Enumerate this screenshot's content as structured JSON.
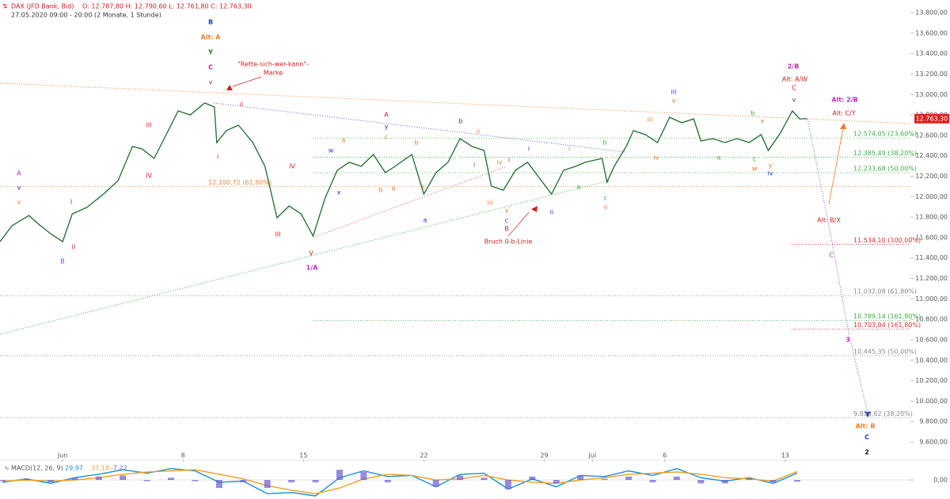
{
  "header": {
    "instrument": "DAX (JFD Bank, Bid)",
    "ohlc": "O: 12.787,80  H: 12.790,60  L: 12.761,80  C: 12.763,30",
    "period": "27.05.2020 09:00 - 20:00  (2 Monate, 1 Stunde)"
  },
  "chart_data": [
    {
      "type": "line",
      "xlim": [
        -2.6,
        35.2
      ],
      "ylim": [
        9430,
        13924
      ],
      "xticks": [
        {
          "value": 0,
          "label": "Jun"
        },
        {
          "value": 5,
          "label": "8"
        },
        {
          "value": 10,
          "label": "15"
        },
        {
          "value": 15,
          "label": "22"
        },
        {
          "value": 20,
          "label": "29"
        },
        {
          "value": 22,
          "label": "Jul"
        },
        {
          "value": 25,
          "label": "6"
        },
        {
          "value": 30,
          "label": "13"
        }
      ],
      "yticks": [
        {
          "value": 9600,
          "label": "9.600,00"
        },
        {
          "value": 9800,
          "label": "9.800,00"
        },
        {
          "value": 10000,
          "label": "10.000,00"
        },
        {
          "value": 10200,
          "label": "10.200,00"
        },
        {
          "value": 10400,
          "label": "10.400,00"
        },
        {
          "value": 10600,
          "label": "10.600,00"
        },
        {
          "value": 10800,
          "label": "10.800,00"
        },
        {
          "value": 11000,
          "label": "11.000,00"
        },
        {
          "value": 11200,
          "label": "11.200,00"
        },
        {
          "value": 11400,
          "label": "11.400,00"
        },
        {
          "value": 11600,
          "label": "11.600,00"
        },
        {
          "value": 11800,
          "label": "11.800,00"
        },
        {
          "value": 12000,
          "label": "12.000,00"
        },
        {
          "value": 12200,
          "label": "12.200,00"
        },
        {
          "value": 12400,
          "label": "12.400,00"
        },
        {
          "value": 12600,
          "label": "12.600,00"
        },
        {
          "value": 12800,
          "label": "12.800,00"
        },
        {
          "value": 13000,
          "label": "13.000,00"
        },
        {
          "value": 13200,
          "label": "13.200,00"
        },
        {
          "value": 13400,
          "label": "13.400,00"
        },
        {
          "value": 13600,
          "label": "13.600,00"
        },
        {
          "value": 13800,
          "label": "13.800,00"
        }
      ],
      "x": [
        -2.6,
        -2.1,
        -1.4,
        -1.0,
        -0.5,
        0,
        0.4,
        1.0,
        1.7,
        2.3,
        2.9,
        3.3,
        3.8,
        4.3,
        4.8,
        5.3,
        5.9,
        6.3,
        6.4,
        6.8,
        7.3,
        7.9,
        8.4,
        8.9,
        9.4,
        9.9,
        10.4,
        10.9,
        11.4,
        11.9,
        12.4,
        12.9,
        13.4,
        13.8,
        14.5,
        15.0,
        15.5,
        16.0,
        16.5,
        17.0,
        17.5,
        17.8,
        18.3,
        18.8,
        19.3,
        19.8,
        20.3,
        20.8,
        21.3,
        21.7,
        22.4,
        22.6,
        22.9,
        23.4,
        23.7,
        24.2,
        24.7,
        25.2,
        25.7,
        26.2,
        26.5,
        27.0,
        27.5,
        28.0,
        28.5,
        29.0,
        29.3,
        29.8,
        30.3,
        30.6,
        30.9
      ],
      "series": [
        {
          "color": "#1d6b2b",
          "values": [
            11560,
            11716,
            11816,
            11731,
            11638,
            11560,
            11832,
            11894,
            12026,
            12157,
            12491,
            12467,
            12374,
            12607,
            12839,
            12800,
            12917,
            12878,
            12529,
            12646,
            12700,
            12529,
            12297,
            11793,
            11909,
            11832,
            11615,
            11987,
            12258,
            12336,
            12297,
            12413,
            12235,
            12297,
            12413,
            12026,
            12235,
            12336,
            12568,
            12491,
            12452,
            12103,
            12064,
            12258,
            12336,
            12181,
            12026,
            12258,
            12297,
            12336,
            12374,
            12142,
            12297,
            12491,
            12646,
            12607,
            12529,
            12777,
            12723,
            12761,
            12545,
            12568,
            12529,
            12568,
            12529,
            12607,
            12452,
            12622,
            12839,
            12761,
            12763
          ]
        }
      ],
      "last_price": {
        "value": 12763.3,
        "label": "12.763,30",
        "color": "#e02020"
      },
      "levels": [
        {
          "value": 12100.72,
          "label": "12.100,72 (61,80%)",
          "color": "#f08a3a"
        },
        {
          "value": 12574.05,
          "label": "12.574,05 (23,60%)",
          "color": "#3cb043"
        },
        {
          "value": 12385.49,
          "label": "12.385,49 (38,20%)",
          "color": "#3cb043"
        },
        {
          "value": 12233.68,
          "label": "12.233,68 (50,00%)",
          "color": "#3cb043"
        },
        {
          "value": 11534.1,
          "label": "11.534,10 (100,00%)",
          "color": "#e03030"
        },
        {
          "value": 11032.08,
          "label": "11.032,08 (61,80%)",
          "color": "#888888"
        },
        {
          "value": 10789.14,
          "label": "10.789,14 (161,80%)",
          "color": "#3cb043"
        },
        {
          "value": 10703.04,
          "label": "10.703,04 (161,80%)",
          "color": "#e03030"
        },
        {
          "value": 10445.35,
          "label": "10.445,35 (50,00%)",
          "color": "#888888"
        },
        {
          "value": 9838.62,
          "label": "9.838,62 (38,20%)",
          "color": "#888888"
        }
      ],
      "annotations": [
        {
          "text": "B",
          "color": "#1a3fcc"
        },
        {
          "text": "Alt: A",
          "color": "#f07a2a"
        },
        {
          "text": "Y",
          "color": "#1a7a1a"
        },
        {
          "text": "C",
          "color": "#cc22aa"
        },
        {
          "text": "v",
          "color": "#d62020"
        },
        {
          "text": "\"Rette-sich-wer-kann\"-",
          "color": "#d62020"
        },
        {
          "text": "Marke",
          "color": "#d62020"
        },
        {
          "text": "ii",
          "color": "#d62020"
        },
        {
          "text": "i",
          "color": "#d62020"
        },
        {
          "text": "III",
          "color": "#d62020"
        },
        {
          "text": "IV",
          "color": "#d62020"
        },
        {
          "text": "IV",
          "color": "#d62020"
        },
        {
          "text": "III",
          "color": "#d62020"
        },
        {
          "text": "V",
          "color": "#d62020"
        },
        {
          "text": "1/A",
          "color": "#cc22cc"
        },
        {
          "text": "A",
          "color": "#cc22cc"
        },
        {
          "text": "v",
          "color": "#2233cc"
        },
        {
          "text": "v",
          "color": "#f07a2a"
        },
        {
          "text": "I",
          "color": "#d62020"
        },
        {
          "text": "II",
          "color": "#d62020"
        },
        {
          "text": "B",
          "color": "#cc22cc"
        },
        {
          "text": "w",
          "color": "#2233cc"
        },
        {
          "text": "x",
          "color": "#2233cc"
        },
        {
          "text": "a",
          "color": "#f07a2a"
        },
        {
          "text": "A",
          "color": "#d62020"
        },
        {
          "text": "y",
          "color": "#2233cc"
        },
        {
          "text": "c",
          "color": "#f07a2a"
        },
        {
          "text": "b",
          "color": "#f07a2a"
        },
        {
          "text": "a",
          "color": "#f07a2a"
        },
        {
          "text": "b",
          "color": "#f07a2a"
        },
        {
          "text": "c",
          "color": "#f07a2a"
        },
        {
          "text": "a",
          "color": "#2233cc"
        },
        {
          "text": "b",
          "color": "#2233cc"
        },
        {
          "text": "ii",
          "color": "#f07a2a"
        },
        {
          "text": "i",
          "color": "#d62020"
        },
        {
          "text": "iv",
          "color": "#f07a2a"
        },
        {
          "text": "i",
          "color": "#d62020"
        },
        {
          "text": "iii",
          "color": "#f07a2a"
        },
        {
          "text": "v",
          "color": "#f07a2a"
        },
        {
          "text": "c",
          "color": "#2233cc"
        },
        {
          "text": "B",
          "color": "#d62020"
        },
        {
          "text": "Bruch 0-b-Linie",
          "color": "#d62020"
        },
        {
          "text": "i",
          "color": "#2233cc"
        },
        {
          "text": "ii",
          "color": "#2233cc"
        },
        {
          "text": "i",
          "color": "#f07a2a"
        },
        {
          "text": "a",
          "color": "#3cb043"
        },
        {
          "text": "b",
          "color": "#3cb043"
        },
        {
          "text": "c",
          "color": "#3cb043"
        },
        {
          "text": "ii",
          "color": "#f07a2a"
        },
        {
          "text": "iii",
          "color": "#f07a2a"
        },
        {
          "text": "iv",
          "color": "#f07a2a"
        },
        {
          "text": "iii",
          "color": "#2233cc"
        },
        {
          "text": "v",
          "color": "#f07a2a"
        },
        {
          "text": "a",
          "color": "#3cb043"
        },
        {
          "text": "b",
          "color": "#3cb043"
        },
        {
          "text": "x",
          "color": "#f07a2a"
        },
        {
          "text": "c",
          "color": "#3cb043"
        },
        {
          "text": "w",
          "color": "#f07a2a"
        },
        {
          "text": "y",
          "color": "#f07a2a"
        },
        {
          "text": "iv",
          "color": "#2233cc"
        },
        {
          "text": "2/B",
          "color": "#cc22cc"
        },
        {
          "text": "Alt: A/W",
          "color": "#d62020"
        },
        {
          "text": "C",
          "color": "#d62020"
        },
        {
          "text": "v",
          "color": "#2233cc"
        },
        {
          "text": "Alt: 2/B",
          "color": "#cc22cc"
        },
        {
          "text": "Alt: C/Y",
          "color": "#d62020"
        },
        {
          "text": "Alt: B/X",
          "color": "#d62020"
        },
        {
          "text": "C",
          "color": "#cc22cc"
        },
        {
          "text": "3",
          "color": "#cc22cc"
        },
        {
          "text": "Alt: B",
          "color": "#f07a2a"
        },
        {
          "text": "C",
          "color": "#1a3fcc"
        },
        {
          "text": "2",
          "color": "#111111"
        }
      ]
    },
    {
      "type": "macd",
      "label": "MACD(12, 26, 9)",
      "xlim": [
        -2.6,
        35.2
      ],
      "ylim": [
        -80,
        80
      ],
      "yticks": [
        {
          "value": 0,
          "label": "0,00"
        }
      ],
      "x": [
        -2.5,
        -1.5,
        -0.5,
        0.5,
        1.5,
        2.5,
        3.5,
        4.5,
        5.5,
        6.5,
        7.5,
        8.5,
        9.5,
        10.5,
        11.5,
        12.5,
        13.5,
        14.5,
        15.5,
        16.5,
        17.5,
        18.5,
        19.5,
        20.5,
        21.5,
        22.5,
        23.5,
        24.5,
        25.5,
        26.5,
        27.5,
        28.5,
        29.5,
        30.5
      ],
      "series": [
        {
          "name": "29,97",
          "color": "#1a8fd6",
          "values": [
            -10,
            5,
            -15,
            10,
            25,
            45,
            30,
            50,
            40,
            -10,
            -5,
            -60,
            -55,
            -70,
            10,
            40,
            15,
            20,
            -30,
            25,
            30,
            -40,
            5,
            -30,
            20,
            15,
            40,
            20,
            50,
            10,
            -5,
            10,
            -15,
            29.97
          ]
        },
        {
          "name": "37,18",
          "color": "#f0a020",
          "values": [
            -5,
            0,
            -5,
            0,
            10,
            25,
            35,
            40,
            45,
            25,
            5,
            -25,
            -45,
            -60,
            -35,
            5,
            25,
            20,
            0,
            5,
            20,
            0,
            -10,
            -15,
            0,
            10,
            25,
            30,
            35,
            25,
            10,
            5,
            -5,
            37.18
          ]
        },
        {
          "name": "-7,22",
          "color": "#6a5acd",
          "bars": true,
          "values": [
            -5,
            5,
            -10,
            10,
            15,
            20,
            -5,
            10,
            -5,
            -35,
            -10,
            -35,
            -10,
            -10,
            45,
            35,
            -10,
            0,
            -30,
            20,
            10,
            -40,
            15,
            -15,
            20,
            5,
            15,
            -10,
            15,
            -15,
            -15,
            5,
            -10,
            -7.22
          ]
        }
      ]
    }
  ]
}
